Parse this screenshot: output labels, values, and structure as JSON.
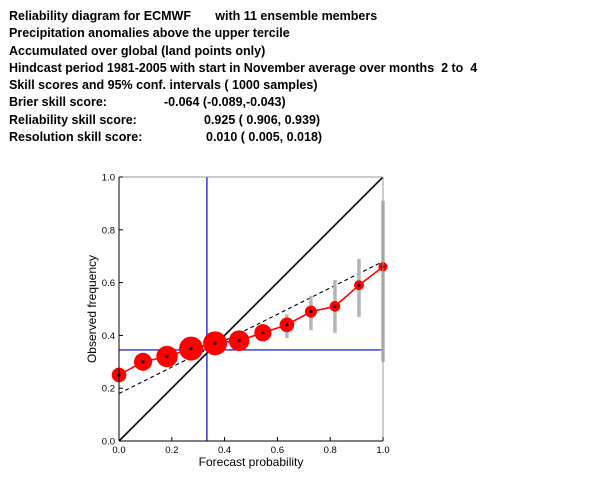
{
  "header": {
    "line1": "Reliability diagram for ECMWF       with 11 ensemble members",
    "line2": "Precipitation anomalies above the upper tercile",
    "line3": "Accumulated over global (land points only)",
    "line4": "Hindcast period 1981-2005 with start in November average over months  2 to  4",
    "line5": "Skill scores and 95% conf. intervals ( 1000 samples)",
    "brier_label": "Brier skill score:",
    "brier_value": "-0.064 (-0.089,-0.043)",
    "reliability_label": "Reliability skill score:",
    "reliability_value": "0.925 ( 0.906, 0.939)",
    "resolution_label": "Resolution skill score:",
    "resolution_value": "0.010 ( 0.005, 0.018)"
  },
  "chart_data": {
    "type": "scatter",
    "xlabel": "Forecast probability",
    "ylabel": "Observed frequency",
    "xlim": [
      0,
      1
    ],
    "ylim": [
      0,
      1
    ],
    "xticks": [
      "0.0",
      "0.2",
      "0.4",
      "0.6",
      "0.8",
      "1.0"
    ],
    "yticks": [
      "0.0",
      "0.2",
      "0.4",
      "0.6",
      "0.8",
      "1.0"
    ],
    "reliability_curve": {
      "x": [
        0.0,
        0.091,
        0.182,
        0.273,
        0.364,
        0.455,
        0.545,
        0.636,
        0.727,
        0.818,
        0.909,
        1.0
      ],
      "y": [
        0.25,
        0.3,
        0.32,
        0.35,
        0.37,
        0.38,
        0.41,
        0.44,
        0.49,
        0.51,
        0.59,
        0.66
      ],
      "sample_size_relative": [
        0.45,
        0.65,
        0.85,
        1.0,
        1.0,
        0.8,
        0.6,
        0.45,
        0.3,
        0.22,
        0.17,
        0.13
      ],
      "color": "#ff0000"
    },
    "confidence_intervals": [
      {
        "x": 0.636,
        "low": 0.39,
        "high": 0.48
      },
      {
        "x": 0.727,
        "low": 0.42,
        "high": 0.55
      },
      {
        "x": 0.818,
        "low": 0.41,
        "high": 0.61
      },
      {
        "x": 0.909,
        "low": 0.47,
        "high": 0.69
      },
      {
        "x": 1.0,
        "low": 0.3,
        "high": 0.91
      }
    ],
    "diagonal": {
      "x": [
        0,
        1
      ],
      "y": [
        0,
        1
      ],
      "color": "#000000"
    },
    "regression_line": {
      "x": [
        0,
        1
      ],
      "y": [
        0.18,
        0.68
      ],
      "style": "dashed"
    },
    "climatology": {
      "x": 0.333,
      "y": 0.345,
      "color": "#0000cc"
    },
    "interval_color": "#b4b4b4"
  }
}
